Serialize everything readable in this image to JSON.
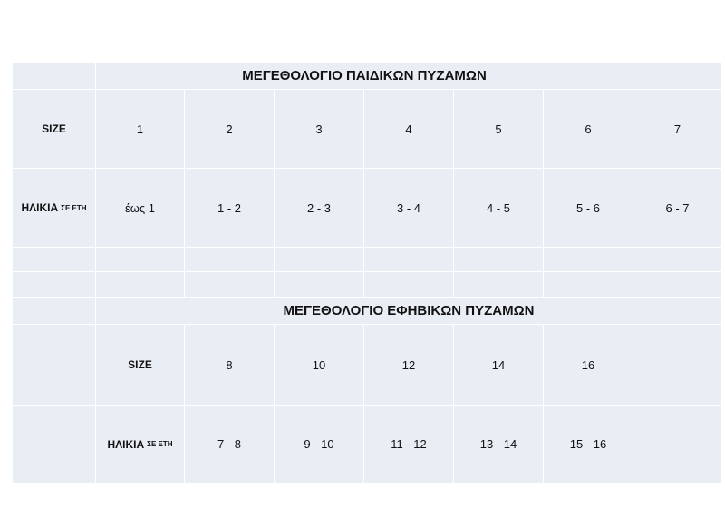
{
  "kids": {
    "title": "ΜΕΓΕΘΟΛΟΓΙΟ ΠΑΙΔΙΚΩΝ ΠΥΖΑΜΩΝ",
    "size_label": "SIZE",
    "age_label": "ΗΛΙΚΙΑ",
    "age_unit": "ΣΕ ΕΤΗ",
    "sizes": [
      "1",
      "2",
      "3",
      "4",
      "5",
      "6",
      "7"
    ],
    "ages": [
      "έως  1",
      "1 - 2",
      "2 - 3",
      "3 - 4",
      "4 - 5",
      "5 - 6",
      "6 - 7"
    ]
  },
  "teens": {
    "title": "ΜΕΓΕΘΟΛΟΓΙΟ ΕΦΗΒΙΚΩΝ  ΠΥΖΑΜΩΝ",
    "size_label": "SIZE",
    "age_label": "ΗΛΙΚΙΑ",
    "age_unit": "ΣΕ ΕΤΗ",
    "sizes": [
      "8",
      "10",
      "12",
      "14",
      "16"
    ],
    "ages": [
      "7 - 8",
      "9 - 10",
      "11 - 12",
      "13 - 14",
      "15 - 16"
    ]
  },
  "colors": {
    "cell": "#e9edf4",
    "grid_line": "#ffffff"
  }
}
